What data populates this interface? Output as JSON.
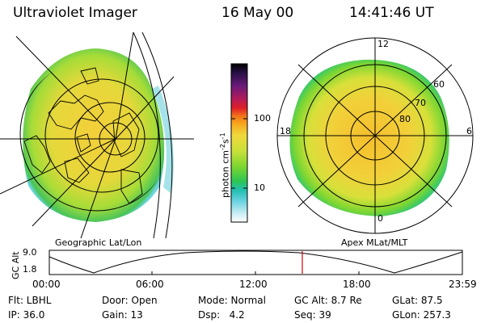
{
  "header": {
    "instrument": "Ultraviolet Imager",
    "date": "16 May 00",
    "time": "14:41:46 UT"
  },
  "left_map": {
    "caption": "Geographic Lat/Lon"
  },
  "right_map": {
    "caption": "Apex MLat/MLT",
    "mlt_labels": [
      "12",
      "18",
      "6",
      "0"
    ],
    "lat_labels": [
      "60",
      "70",
      "80"
    ]
  },
  "colorbar": {
    "unit_label": "photon cm",
    "unit_sup1": "-2",
    "unit_mid": "s",
    "unit_sup2": "-1",
    "tick_labels": [
      "100",
      "10"
    ],
    "colors": [
      "#000000",
      "#1a0f3a",
      "#4d1a66",
      "#8c1a80",
      "#c81a40",
      "#e82020",
      "#f56a10",
      "#fba81e",
      "#f2d23a",
      "#c8e03a",
      "#7cd832",
      "#33c84a",
      "#1fbfb0",
      "#5fd4e0",
      "#b6e8ef",
      "#ffffff"
    ]
  },
  "altitude_plot": {
    "ylabel": "GC Alt",
    "ytick_top": "9.0",
    "ytick_bottom": "1.8",
    "xticks": [
      "00:00",
      "06:00",
      "12:00",
      "18:00",
      "23:59"
    ],
    "current_time_hours": 14.7,
    "marker_color": "#cc0000"
  },
  "status": {
    "row1": {
      "filter": "Flt: LBHL",
      "door": "Door: Open",
      "mode": "Mode: Normal",
      "gc_alt": "GC Alt: 8.7 Re",
      "glat": "GLat:  87.5"
    },
    "row2": {
      "ip": "IP: 36.0",
      "gain": "Gain: 13",
      "dsp": "Dsp:   4.2",
      "seq": "Seq: 39",
      "glon": "GLon: 257.3"
    }
  }
}
